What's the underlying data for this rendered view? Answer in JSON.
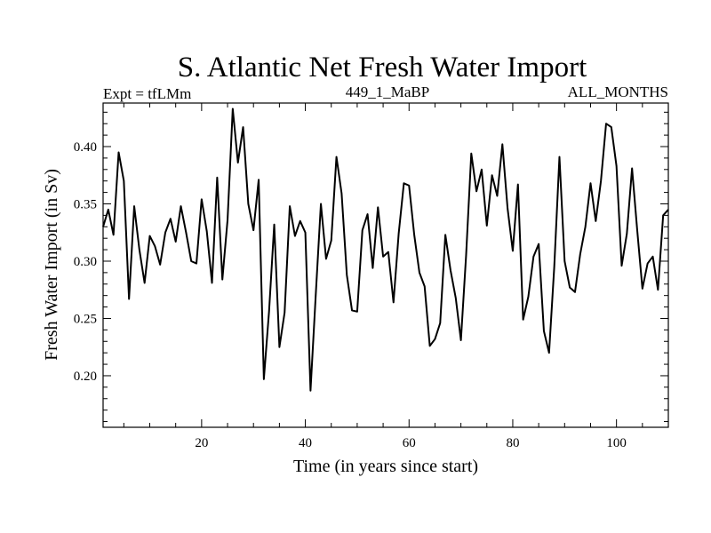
{
  "chart_data": {
    "type": "line",
    "title": "S. Atlantic Net Fresh Water Import",
    "subtitle_left": "Expt = tfLMm",
    "subtitle_center": "449_1_MaBP",
    "subtitle_right": "ALL_MONTHS",
    "xlabel": "Time (in years since start)",
    "ylabel": "Fresh Water Import (in Sv)",
    "xlim": [
      1,
      110
    ],
    "ylim": [
      0.155,
      0.438
    ],
    "xticks": [
      20,
      40,
      60,
      80,
      100
    ],
    "yticks": [
      0.2,
      0.25,
      0.3,
      0.35,
      0.4
    ],
    "xtick_labels": [
      "20",
      "40",
      "60",
      "80",
      "100"
    ],
    "ytick_labels": [
      "0.20",
      "0.25",
      "0.30",
      "0.35",
      "0.40"
    ],
    "grid": false,
    "series": [
      {
        "name": "Fresh Water Import",
        "color": "#000000",
        "x": [
          1,
          2,
          3,
          4,
          5,
          6,
          7,
          8,
          9,
          10,
          11,
          12,
          13,
          14,
          15,
          16,
          17,
          18,
          19,
          20,
          21,
          22,
          23,
          24,
          25,
          26,
          27,
          28,
          29,
          30,
          31,
          32,
          33,
          34,
          35,
          36,
          37,
          38,
          39,
          40,
          41,
          42,
          43,
          44,
          45,
          46,
          47,
          48,
          49,
          50,
          51,
          52,
          53,
          54,
          55,
          56,
          57,
          58,
          59,
          60,
          61,
          62,
          63,
          64,
          65,
          66,
          67,
          68,
          69,
          70,
          71,
          72,
          73,
          74,
          75,
          76,
          77,
          78,
          79,
          80,
          81,
          82,
          83,
          84,
          85,
          86,
          87,
          88,
          89,
          90,
          91,
          92,
          93,
          94,
          95,
          96,
          97,
          98,
          99,
          100,
          101,
          102,
          103,
          104,
          105,
          106,
          107,
          108,
          109,
          110
        ],
        "values": [
          0.33,
          0.345,
          0.323,
          0.395,
          0.37,
          0.267,
          0.348,
          0.31,
          0.281,
          0.322,
          0.313,
          0.297,
          0.325,
          0.337,
          0.317,
          0.348,
          0.325,
          0.3,
          0.298,
          0.354,
          0.326,
          0.281,
          0.373,
          0.284,
          0.336,
          0.433,
          0.386,
          0.417,
          0.35,
          0.327,
          0.371,
          0.197,
          0.256,
          0.332,
          0.225,
          0.255,
          0.348,
          0.322,
          0.335,
          0.325,
          0.187,
          0.27,
          0.35,
          0.302,
          0.318,
          0.391,
          0.359,
          0.288,
          0.257,
          0.256,
          0.327,
          0.341,
          0.294,
          0.347,
          0.304,
          0.308,
          0.264,
          0.324,
          0.368,
          0.366,
          0.323,
          0.29,
          0.278,
          0.226,
          0.232,
          0.246,
          0.323,
          0.292,
          0.268,
          0.231,
          0.305,
          0.394,
          0.361,
          0.38,
          0.331,
          0.375,
          0.357,
          0.402,
          0.346,
          0.309,
          0.367,
          0.249,
          0.269,
          0.304,
          0.315,
          0.239,
          0.22,
          0.295,
          0.391,
          0.3,
          0.277,
          0.273,
          0.306,
          0.33,
          0.368,
          0.335,
          0.37,
          0.42,
          0.417,
          0.383,
          0.296,
          0.324,
          0.381,
          0.327,
          0.276,
          0.298,
          0.304,
          0.275,
          0.34,
          0.345
        ]
      }
    ]
  }
}
